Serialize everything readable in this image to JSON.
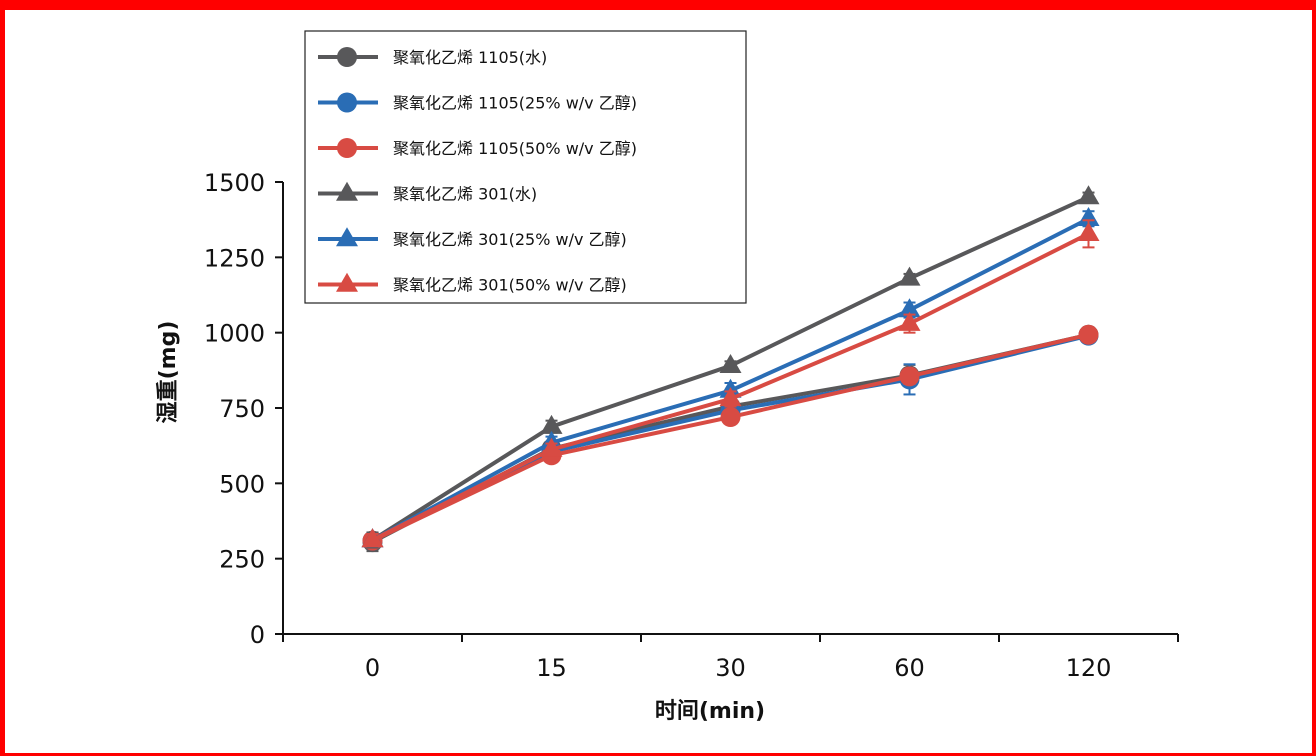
{
  "chart_data": {
    "type": "line",
    "categories": [
      "0",
      "15",
      "30",
      "60",
      "120"
    ],
    "xlabel": "时间(min)",
    "ylabel": "湿重(mg)",
    "ylim": [
      0,
      1500
    ],
    "yticks": [
      0,
      250,
      500,
      750,
      1000,
      1250,
      1500
    ],
    "grid": false,
    "legend_position": "top-left",
    "series": [
      {
        "name": "聚氧化乙烯 1105(水)",
        "marker": "circle",
        "color": "#58585a",
        "values": [
          305,
          615,
          755,
          858,
          993
        ],
        "errors": [
          30,
          20,
          20,
          35,
          15
        ]
      },
      {
        "name": "聚氧化乙烯 1105(25% w/v 乙醇)",
        "marker": "circle",
        "color": "#2a6db5",
        "values": [
          310,
          605,
          742,
          845,
          990
        ],
        "errors": [
          20,
          15,
          20,
          50,
          12
        ]
      },
      {
        "name": "聚氧化乙烯 1105(50% w/v 乙醇)",
        "marker": "circle",
        "color": "#d84b43",
        "values": [
          310,
          593,
          720,
          855,
          993
        ],
        "errors": [
          20,
          15,
          20,
          25,
          12
        ]
      },
      {
        "name": "聚氧化乙烯 301(水)",
        "marker": "triangle",
        "color": "#58585a",
        "values": [
          312,
          688,
          890,
          1180,
          1450
        ],
        "errors": [
          25,
          20,
          15,
          15,
          15
        ]
      },
      {
        "name": "聚氧化乙烯 301(25% w/v 乙醇)",
        "marker": "triangle",
        "color": "#2a6db5",
        "values": [
          312,
          635,
          808,
          1075,
          1378
        ],
        "errors": [
          20,
          20,
          25,
          25,
          25
        ]
      },
      {
        "name": "聚氧化乙烯 301(50% w/v 乙醇)",
        "marker": "triangle",
        "color": "#d84b43",
        "values": [
          312,
          612,
          780,
          1030,
          1328
        ],
        "errors": [
          20,
          20,
          25,
          30,
          45
        ]
      }
    ]
  }
}
